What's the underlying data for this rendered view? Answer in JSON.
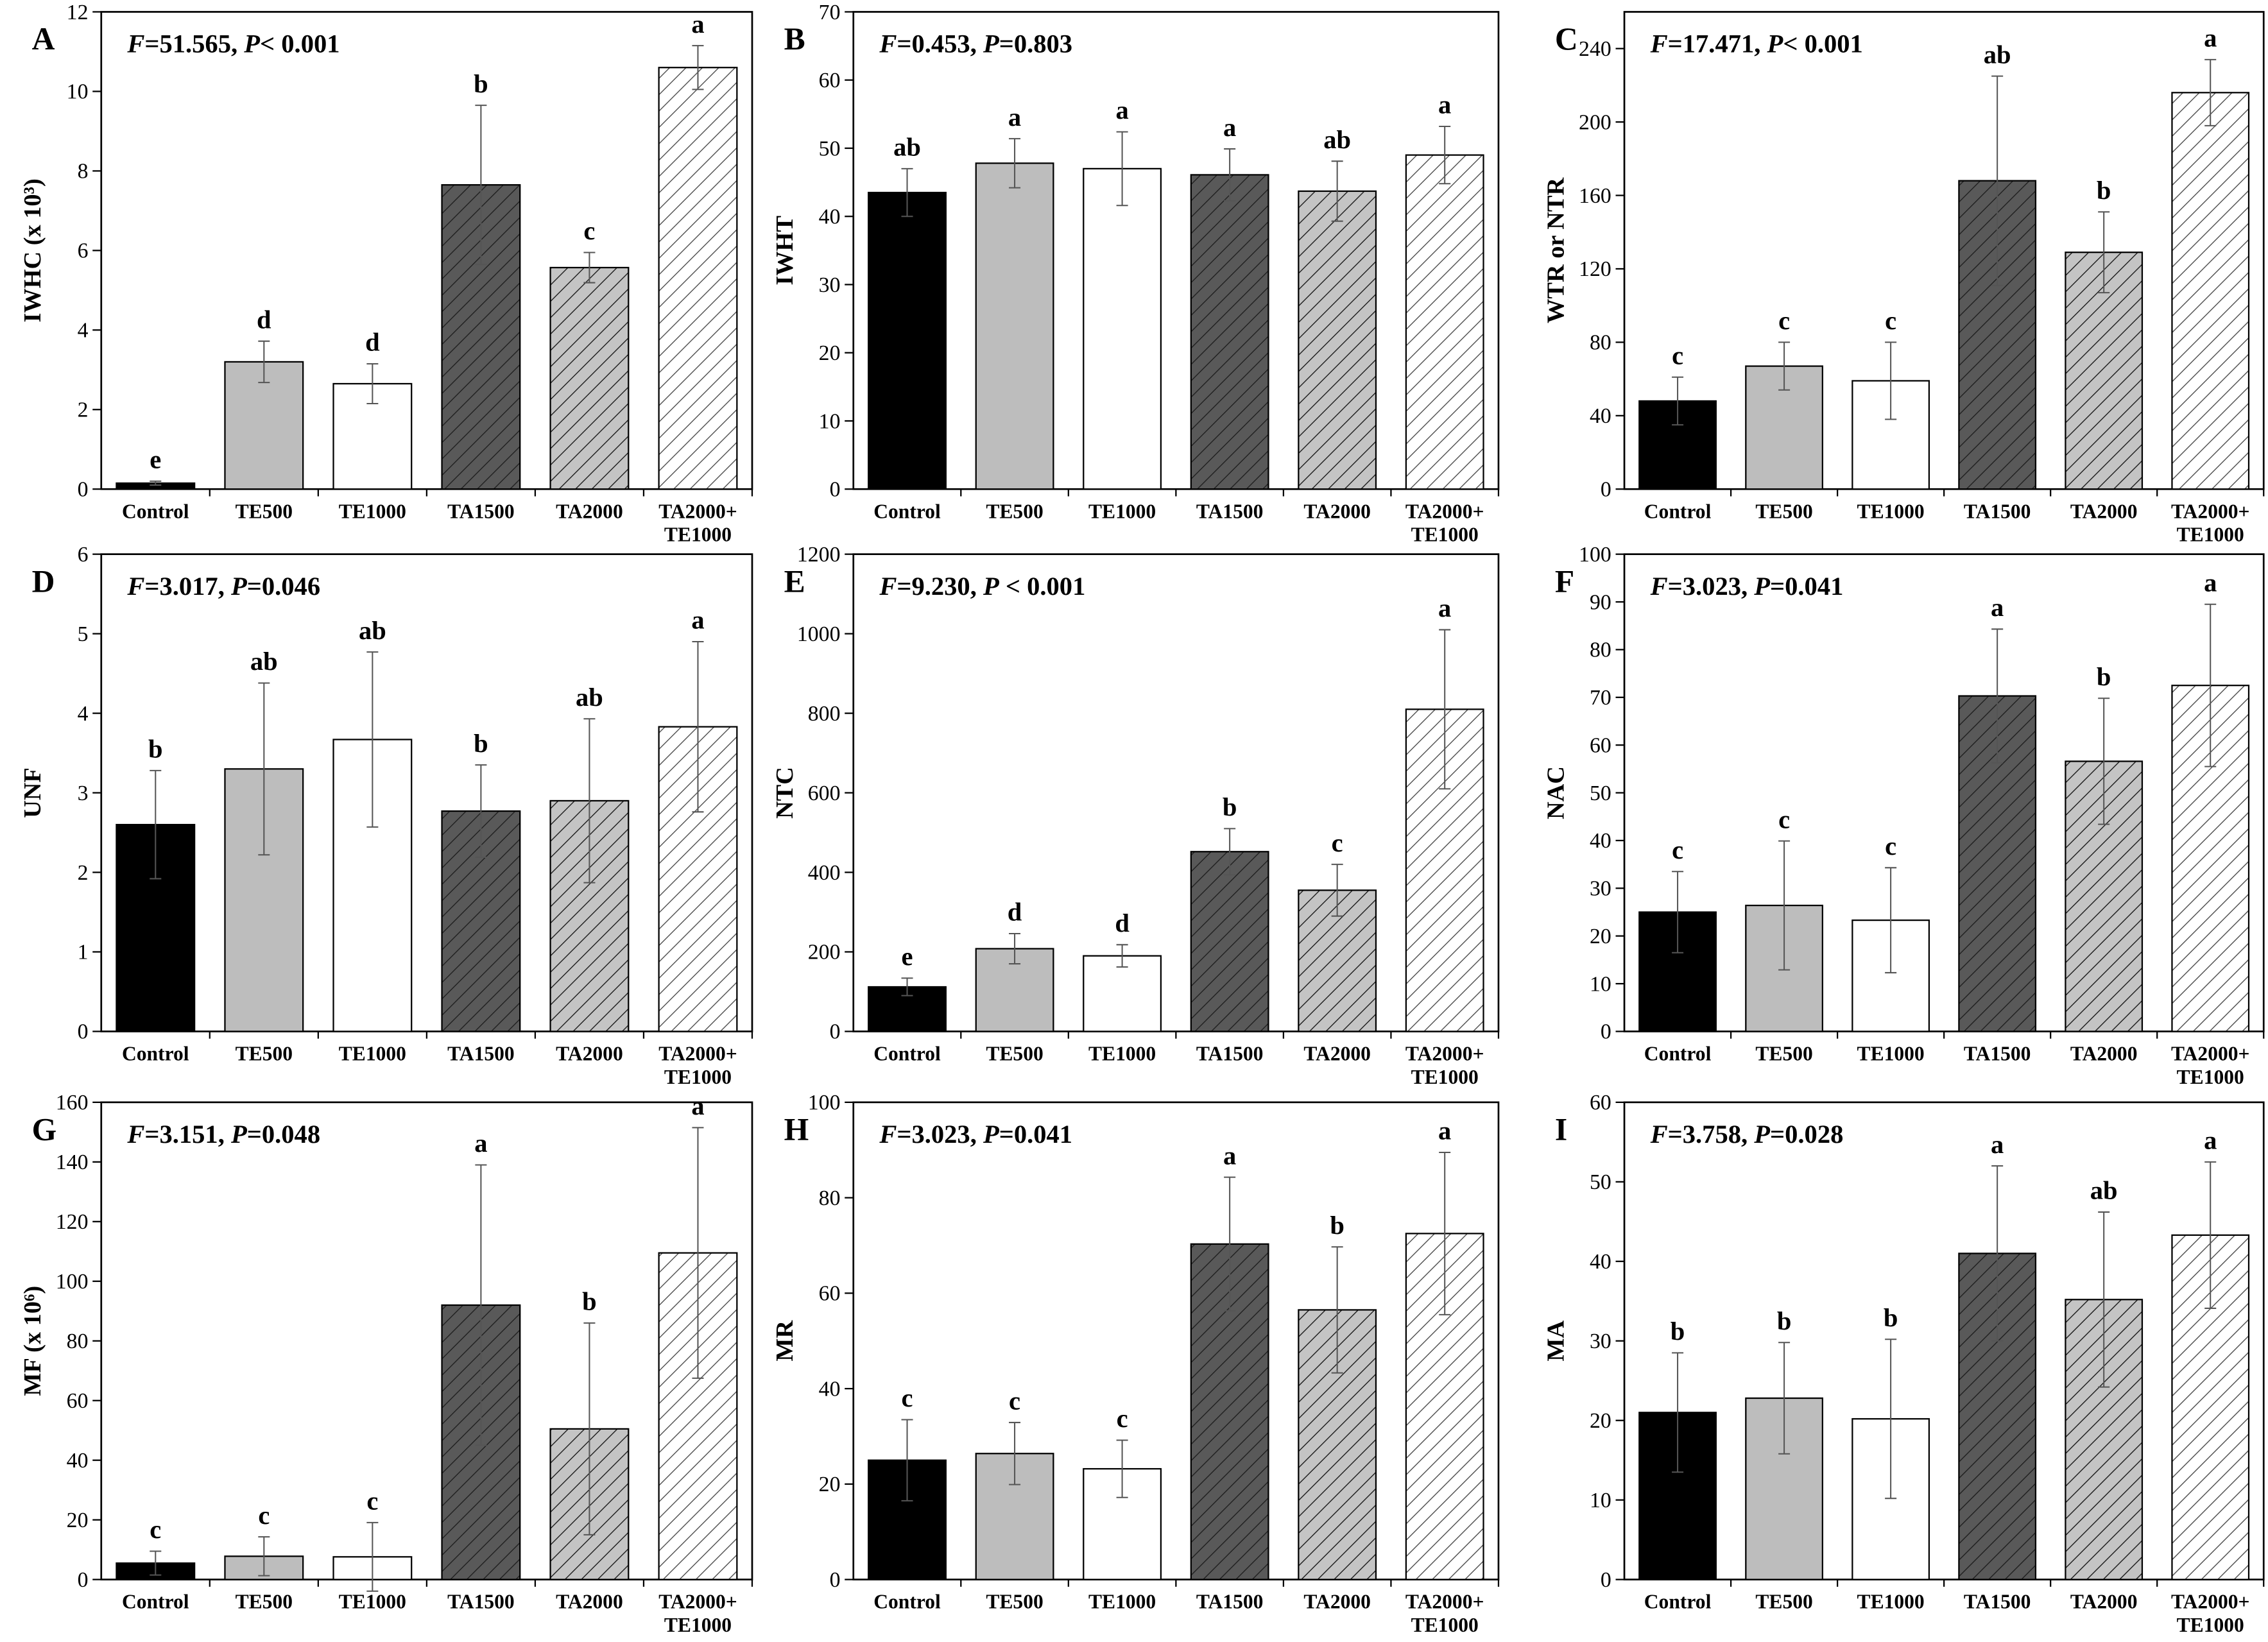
{
  "chart_data": [
    {
      "type": "bar",
      "panel": "A",
      "stat": [
        "F",
        "=51.565, ",
        "P",
        "< 0.001"
      ],
      "ylabel": "IWHC (x 10³)",
      "categories": [
        "Control",
        "TE500",
        "TE1000",
        "TA1500",
        "TA2000",
        "TA2000+\nTE1000"
      ],
      "values": [
        0.15,
        3.2,
        2.65,
        7.65,
        5.57,
        10.6
      ],
      "errors": [
        0.05,
        0.52,
        0.5,
        2.0,
        0.38,
        0.55
      ],
      "labels": [
        "e",
        "d",
        "d",
        "b",
        "c",
        "a"
      ],
      "colors": [
        "#000000",
        "#bdbdbd",
        "#ffffff",
        "#595959",
        "#c4c4c4",
        "#ffffff"
      ],
      "hatch": [
        false,
        false,
        false,
        true,
        true,
        true
      ],
      "ylim": [
        0,
        12
      ],
      "yticks": [
        0,
        2,
        4,
        6,
        8,
        10,
        12
      ]
    },
    {
      "type": "bar",
      "panel": "B",
      "stat": [
        "F",
        "=0.453, ",
        "P",
        "=0.803"
      ],
      "ylabel": "IWHT",
      "categories": [
        "Control",
        "TE500",
        "TE1000",
        "TA1500",
        "TA2000",
        "TA2000+\nTE1000"
      ],
      "values": [
        43.5,
        47.8,
        47,
        46.1,
        43.7,
        49
      ],
      "errors": [
        3.5,
        3.6,
        5.4,
        3.8,
        4.4,
        4.2
      ],
      "labels": [
        "ab",
        "a",
        "a",
        "a",
        "ab",
        "a"
      ],
      "colors": [
        "#000000",
        "#bdbdbd",
        "#ffffff",
        "#595959",
        "#c4c4c4",
        "#ffffff"
      ],
      "hatch": [
        false,
        false,
        false,
        true,
        true,
        true
      ],
      "ylim": [
        0,
        70
      ],
      "yticks": [
        0,
        10,
        20,
        30,
        40,
        50,
        60,
        70
      ]
    },
    {
      "type": "bar",
      "panel": "C",
      "stat": [
        "F",
        "=17.471, ",
        "P",
        "< 0.001"
      ],
      "ylabel": "WTR or NTR",
      "categories": [
        "Control",
        "TE500",
        "TE1000",
        "TA1500",
        "TA2000",
        "TA2000+\nTE1000"
      ],
      "values": [
        48,
        67,
        59,
        168,
        129,
        216
      ],
      "errors": [
        13,
        13,
        21,
        57,
        22,
        18
      ],
      "labels": [
        "c",
        "c",
        "c",
        "ab",
        "b",
        "a"
      ],
      "colors": [
        "#000000",
        "#bdbdbd",
        "#ffffff",
        "#595959",
        "#c4c4c4",
        "#ffffff"
      ],
      "hatch": [
        false,
        false,
        false,
        true,
        true,
        true
      ],
      "ylim": [
        0,
        260
      ],
      "yticks": [
        0,
        40,
        80,
        120,
        160,
        200,
        240
      ]
    },
    {
      "type": "bar",
      "panel": "D",
      "stat": [
        "F",
        "=3.017, ",
        "P",
        "=0.046"
      ],
      "ylabel": "UNF",
      "categories": [
        "Control",
        "TE500",
        "TE1000",
        "TA1500",
        "TA2000",
        "TA2000+\nTE1000"
      ],
      "values": [
        2.6,
        3.3,
        3.67,
        2.77,
        2.9,
        3.83
      ],
      "errors": [
        0.68,
        1.08,
        1.1,
        0.58,
        1.03,
        1.07
      ],
      "labels": [
        "b",
        "ab",
        "ab",
        "b",
        "ab",
        "a"
      ],
      "colors": [
        "#000000",
        "#bdbdbd",
        "#ffffff",
        "#595959",
        "#c4c4c4",
        "#ffffff"
      ],
      "hatch": [
        false,
        false,
        false,
        true,
        true,
        true
      ],
      "ylim": [
        0,
        6
      ],
      "yticks": [
        0,
        1,
        2,
        3,
        4,
        5,
        6
      ]
    },
    {
      "type": "bar",
      "panel": "E",
      "stat": [
        "F",
        "=9.230, ",
        "P",
        " < 0.001"
      ],
      "ylabel": "NTC",
      "categories": [
        "Control",
        "TE500",
        "TE1000",
        "TA1500",
        "TA2000",
        "TA2000+\nTE1000"
      ],
      "values": [
        112,
        208,
        190,
        452,
        355,
        810
      ],
      "errors": [
        22,
        38,
        28,
        58,
        65,
        200
      ],
      "labels": [
        "e",
        "d",
        "d",
        "b",
        "c",
        "a"
      ],
      "colors": [
        "#000000",
        "#bdbdbd",
        "#ffffff",
        "#595959",
        "#c4c4c4",
        "#ffffff"
      ],
      "hatch": [
        false,
        false,
        false,
        true,
        true,
        true
      ],
      "ylim": [
        0,
        1200
      ],
      "yticks": [
        0,
        200,
        400,
        600,
        800,
        1000,
        1200
      ]
    },
    {
      "type": "bar",
      "panel": "F",
      "stat": [
        "F",
        "=3.023, ",
        "P",
        "=0.041"
      ],
      "ylabel": "NAC",
      "categories": [
        "Control",
        "TE500",
        "TE1000",
        "TA1500",
        "TA2000",
        "TA2000+\nTE1000"
      ],
      "values": [
        25,
        26.4,
        23.3,
        70.3,
        56.6,
        72.5
      ],
      "errors": [
        8.5,
        13.5,
        11,
        14,
        13.2,
        17
      ],
      "labels": [
        "c",
        "c",
        "c",
        "a",
        "b",
        "a"
      ],
      "colors": [
        "#000000",
        "#bdbdbd",
        "#ffffff",
        "#595959",
        "#c4c4c4",
        "#ffffff"
      ],
      "hatch": [
        false,
        false,
        false,
        true,
        true,
        true
      ],
      "ylim": [
        0,
        100
      ],
      "yticks": [
        0,
        10,
        20,
        30,
        40,
        50,
        60,
        70,
        80,
        90,
        100
      ]
    },
    {
      "type": "bar",
      "panel": "G",
      "stat": [
        "F",
        "=3.151, ",
        "P",
        "=0.048"
      ],
      "ylabel": "MF (x 10⁶)",
      "categories": [
        "Control",
        "TE500",
        "TE1000",
        "TA1500",
        "TA2000",
        "TA2000+\nTE1000"
      ],
      "values": [
        5.5,
        7.8,
        7.6,
        92,
        50.5,
        109.5
      ],
      "errors": [
        4,
        6.5,
        11.5,
        47,
        35.5,
        42
      ],
      "labels": [
        "c",
        "c",
        "c",
        "a",
        "b",
        "a"
      ],
      "colors": [
        "#000000",
        "#bdbdbd",
        "#ffffff",
        "#595959",
        "#c4c4c4",
        "#ffffff"
      ],
      "hatch": [
        false,
        false,
        false,
        true,
        true,
        true
      ],
      "ylim": [
        0,
        160
      ],
      "yticks": [
        0,
        20,
        40,
        60,
        80,
        100,
        120,
        140,
        160
      ]
    },
    {
      "type": "bar",
      "panel": "H",
      "stat": [
        "F",
        "=3.023, ",
        "P",
        "=0.041"
      ],
      "ylabel": "MR",
      "categories": [
        "Control",
        "TE500",
        "TE1000",
        "TA1500",
        "TA2000",
        "TA2000+\nTE1000"
      ],
      "values": [
        25,
        26.4,
        23.2,
        70.3,
        56.5,
        72.5
      ],
      "errors": [
        8.5,
        6.5,
        6,
        14,
        13.2,
        17
      ],
      "labels": [
        "c",
        "c",
        "c",
        "a",
        "b",
        "a"
      ],
      "colors": [
        "#000000",
        "#bdbdbd",
        "#ffffff",
        "#595959",
        "#c4c4c4",
        "#ffffff"
      ],
      "hatch": [
        false,
        false,
        false,
        true,
        true,
        true
      ],
      "ylim": [
        0,
        100
      ],
      "yticks": [
        0,
        20,
        40,
        60,
        80,
        100
      ]
    },
    {
      "type": "bar",
      "panel": "I",
      "stat": [
        "F",
        "=3.758, ",
        "P",
        "=0.028"
      ],
      "ylabel": "MA",
      "categories": [
        "Control",
        "TE500",
        "TE1000",
        "TA1500",
        "TA2000",
        "TA2000+\nTE1000"
      ],
      "values": [
        21,
        22.8,
        20.2,
        41,
        35.2,
        43.3
      ],
      "errors": [
        7.5,
        7,
        10,
        11,
        11,
        9.2
      ],
      "labels": [
        "b",
        "b",
        "b",
        "a",
        "ab",
        "a"
      ],
      "colors": [
        "#000000",
        "#bdbdbd",
        "#ffffff",
        "#595959",
        "#c4c4c4",
        "#ffffff"
      ],
      "hatch": [
        false,
        false,
        false,
        true,
        true,
        true
      ],
      "ylim": [
        0,
        60
      ],
      "yticks": [
        0,
        10,
        20,
        30,
        40,
        50,
        60
      ]
    }
  ]
}
